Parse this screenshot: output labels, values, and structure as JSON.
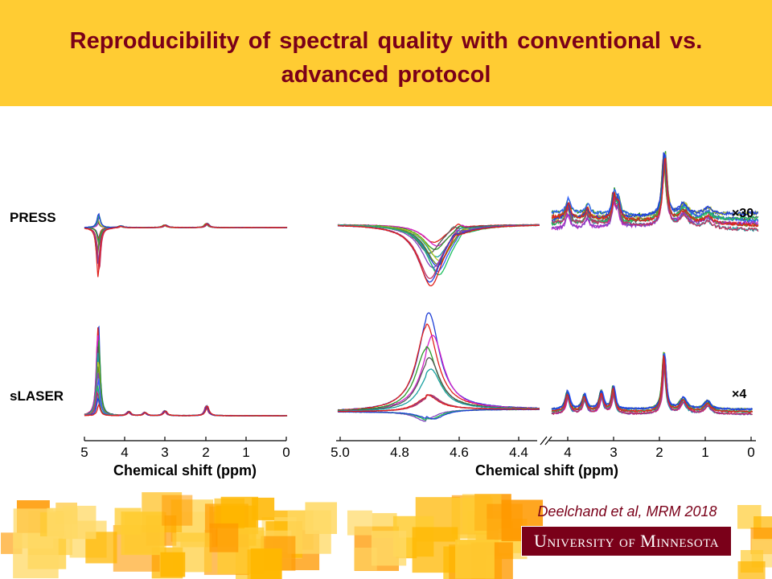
{
  "header": {
    "title": "Reproducibility of spectral quality with conventional vs. advanced protocol"
  },
  "rows": [
    "PRESS",
    "sLASER"
  ],
  "scales": [
    "×30",
    "×4"
  ],
  "axes": [
    {
      "ticks": [
        "5",
        "4",
        "3",
        "2",
        "1",
        "0"
      ],
      "label": "Chemical shift (ppm)"
    },
    {
      "ticks": [
        "5.0",
        "4.8",
        "4.6",
        "4.4"
      ],
      "label": "Chemical shift (ppm)"
    },
    {
      "ticks": [
        "4",
        "3",
        "2",
        "1",
        "0"
      ]
    }
  ],
  "citation": "Deelchand et al, MRM 2018",
  "logo": "University of Minnesota"
}
